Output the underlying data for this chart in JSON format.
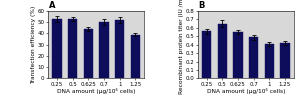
{
  "categories": [
    "0.25",
    "0.5",
    "0.625",
    "0.7",
    "1",
    "1.25"
  ],
  "chart_A": {
    "label": "A",
    "values": [
      53,
      53,
      44,
      50,
      52,
      39
    ],
    "errors": [
      2.5,
      2.0,
      2.0,
      2.5,
      2.5,
      1.5
    ],
    "ylabel": "Transfection efficiency (%)",
    "xlabel": "DNA amount (μg/10⁶ cells)",
    "ylim": [
      0,
      60
    ],
    "yticks": [
      0,
      10,
      20,
      30,
      40,
      50,
      60
    ]
  },
  "chart_B": {
    "label": "B",
    "values": [
      0.56,
      0.65,
      0.55,
      0.49,
      0.41,
      0.42
    ],
    "errors": [
      0.03,
      0.04,
      0.025,
      0.03,
      0.025,
      0.025
    ],
    "ylabel": "Recombinant protein titer (IU /ml)",
    "xlabel": "DNA amount (μg/10⁶ cells)",
    "ylim": [
      0,
      0.8
    ],
    "yticks": [
      0.0,
      0.1,
      0.2,
      0.3,
      0.4,
      0.5,
      0.6,
      0.7,
      0.8
    ]
  },
  "bar_color": "#0d0d5c",
  "bar_edgecolor": "#0d0d5c",
  "error_color": "black",
  "background_color": "#ffffff",
  "axes_facecolor": "#d8d8d8",
  "label_fontsize": 4.2,
  "tick_fontsize": 4.0,
  "panel_fontsize": 6.0,
  "bar_width": 0.6
}
